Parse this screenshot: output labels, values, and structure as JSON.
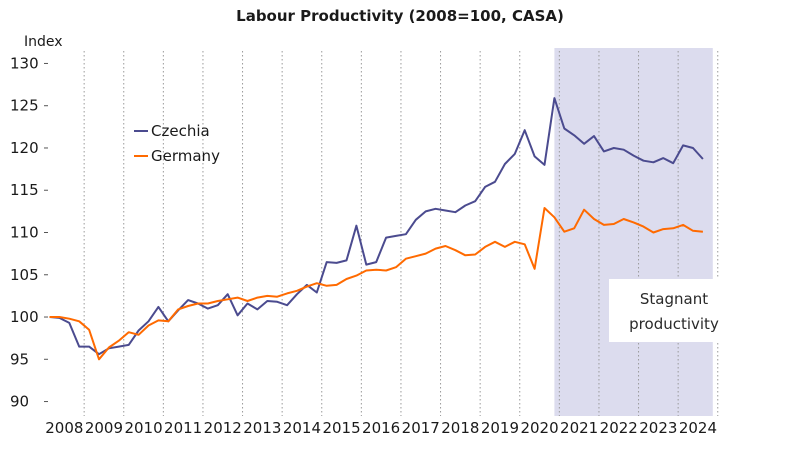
{
  "chart_data": {
    "type": "line",
    "title": "Labour Productivity (2008=100, CASA)",
    "ylabel": "Index",
    "xlabel": "",
    "ylim": [
      89,
      131
    ],
    "y_ticks": [
      90,
      95,
      100,
      105,
      110,
      115,
      120,
      125,
      130
    ],
    "x_start_year": 2008,
    "x_tick_labels": [
      "2008",
      "2009",
      "2010",
      "2011",
      "2012",
      "2013",
      "2014",
      "2015",
      "2016",
      "2017",
      "2018",
      "2019",
      "2020",
      "2021",
      "2022",
      "2023",
      "2024"
    ],
    "grid": "vertical dotted at year boundaries",
    "legend_position": "top-left",
    "series": [
      {
        "name": "Czechia",
        "color": "#4b4b8f",
        "values": [
          100.0,
          99.9,
          99.3,
          96.5,
          96.5,
          95.6,
          96.3,
          96.5,
          96.7,
          98.4,
          99.5,
          101.2,
          99.5,
          100.8,
          102.0,
          101.6,
          101.0,
          101.4,
          102.7,
          100.2,
          101.6,
          100.9,
          101.9,
          101.8,
          101.4,
          102.7,
          103.8,
          102.9,
          106.5,
          106.4,
          106.7,
          110.8,
          106.2,
          106.5,
          109.4,
          109.6,
          109.8,
          111.5,
          112.5,
          112.8,
          112.6,
          112.4,
          113.2,
          113.7,
          115.4,
          116.0,
          118.1,
          119.3,
          122.1,
          119.0,
          118.0,
          125.9,
          122.3,
          121.5,
          120.5,
          121.4,
          119.6,
          120.0,
          119.8,
          119.1,
          118.5,
          118.3,
          118.8,
          118.2,
          120.3,
          120.0,
          118.7
        ]
      },
      {
        "name": "Germany",
        "color": "#ff6a00",
        "values": [
          100.0,
          100.0,
          99.8,
          99.5,
          98.5,
          95.0,
          96.4,
          97.2,
          98.2,
          97.9,
          99.0,
          99.6,
          99.5,
          100.9,
          101.3,
          101.6,
          101.6,
          101.9,
          102.1,
          102.3,
          101.9,
          102.3,
          102.5,
          102.4,
          102.8,
          103.1,
          103.6,
          104.0,
          103.7,
          103.8,
          104.5,
          104.9,
          105.5,
          105.6,
          105.5,
          105.9,
          106.9,
          107.2,
          107.5,
          108.1,
          108.4,
          107.9,
          107.3,
          107.4,
          108.3,
          108.9,
          108.3,
          108.9,
          108.6,
          105.7,
          112.9,
          111.8,
          110.1,
          110.5,
          112.7,
          111.6,
          110.9,
          111.0,
          111.6,
          111.2,
          110.7,
          110.0,
          110.4,
          110.5,
          110.9,
          110.2,
          110.1
        ]
      }
    ],
    "shaded_region": {
      "start_year_fraction": 2020.75,
      "end_year_fraction": 2024.75,
      "color": "#dcdcee"
    },
    "annotation": {
      "line1": "Stagnant",
      "line2": "productivity"
    }
  }
}
